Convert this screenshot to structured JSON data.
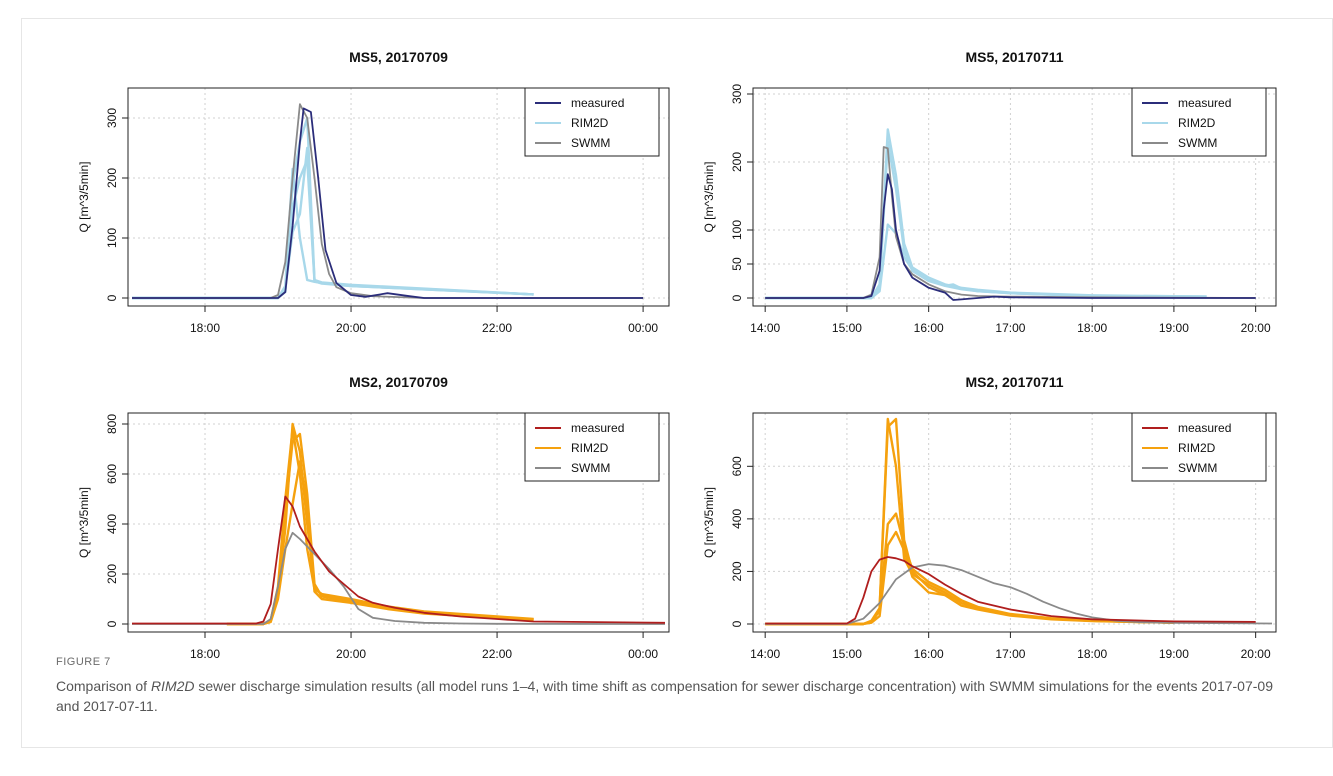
{
  "figure": {
    "label": "FIGURE 7",
    "caption_pre": "Comparison of ",
    "caption_em": "RIM2D",
    "caption_post": " sewer discharge simulation results (all model runs 1–4, with time shift as compensation for sewer discharge concentration) with SWMM simulations for the events 2017-07-09 and 2017-07-11."
  },
  "colors": {
    "ms5_measured": "#2b2d7a",
    "ms5_rim2d": "#a8d8ea",
    "ms2_measured": "#b01e1e",
    "ms2_rim2d": "#f5a10e",
    "swmm": "#8a8a8a"
  },
  "chart_data": [
    {
      "type": "line",
      "title": "MS5, 20170709",
      "ylabel": "Q [m^3/5min]",
      "xlabel": "",
      "xlim": [
        17.0,
        24.3
      ],
      "ylim": [
        0,
        340
      ],
      "xticks": [
        18,
        20,
        22,
        24
      ],
      "xtick_labels": [
        "18:00",
        "20:00",
        "22:00",
        "00:00"
      ],
      "yticks": [
        0,
        100,
        200,
        300
      ],
      "ytick_labels": [
        "0",
        "100",
        "200",
        "300"
      ],
      "grid": true,
      "legend": "top-right",
      "legend_entries": [
        "measured",
        "RIM2D",
        "SWMM"
      ],
      "series": [
        {
          "name": "RIM2D",
          "color_key": "ms5_rim2d",
          "width": 2.4,
          "x": [
            17.0,
            19.0,
            19.1,
            19.2,
            19.3,
            19.4,
            19.5,
            19.6,
            20.0,
            22.5
          ],
          "y": [
            0,
            0,
            20,
            215,
            100,
            30,
            27,
            25,
            20,
            6
          ]
        },
        {
          "name": "RIM2D",
          "color_key": "ms5_rim2d",
          "width": 2.4,
          "x": [
            17.0,
            19.0,
            19.1,
            19.2,
            19.3,
            19.4,
            19.5,
            19.6,
            20.0,
            22.5
          ],
          "y": [
            0,
            0,
            15,
            110,
            140,
            250,
            30,
            26,
            22,
            6
          ]
        },
        {
          "name": "RIM2D",
          "color_key": "ms5_rim2d",
          "width": 2.4,
          "x": [
            17.0,
            19.0,
            19.1,
            19.2,
            19.3,
            19.4,
            19.5,
            19.6,
            20.0,
            22.5
          ],
          "y": [
            0,
            0,
            10,
            150,
            200,
            230,
            28,
            24,
            20,
            6
          ]
        },
        {
          "name": "RIM2D",
          "color_key": "ms5_rim2d",
          "width": 2.4,
          "x": [
            17.0,
            19.0,
            19.1,
            19.2,
            19.3,
            19.4,
            19.5,
            19.6,
            20.0,
            22.5
          ],
          "y": [
            0,
            0,
            12,
            190,
            260,
            300,
            30,
            25,
            21,
            6
          ]
        },
        {
          "name": "SWMM",
          "color_key": "swmm",
          "width": 1.8,
          "x": [
            17.0,
            18.9,
            19.0,
            19.1,
            19.2,
            19.3,
            19.4,
            19.5,
            19.6,
            19.7,
            19.8,
            20.0,
            20.3,
            21.0,
            24.0
          ],
          "y": [
            0,
            0,
            5,
            60,
            200,
            323,
            300,
            200,
            90,
            40,
            18,
            8,
            3,
            0,
            0
          ]
        },
        {
          "name": "measured",
          "color_key": "ms5_measured",
          "width": 1.8,
          "x": [
            17.0,
            19.0,
            19.1,
            19.2,
            19.3,
            19.35,
            19.45,
            19.55,
            19.65,
            19.8,
            20.0,
            20.2,
            20.5,
            20.8,
            21.0,
            24.0
          ],
          "y": [
            0,
            0,
            10,
            120,
            260,
            316,
            310,
            200,
            80,
            25,
            5,
            2,
            8,
            3,
            0,
            0
          ]
        }
      ]
    },
    {
      "type": "line",
      "title": "MS5, 20170711",
      "ylabel": "Q [m^3/5min]",
      "xlabel": "",
      "xlim": [
        13.9,
        20.2
      ],
      "ylim": [
        0,
        300
      ],
      "xticks": [
        14,
        15,
        16,
        17,
        18,
        19,
        20
      ],
      "xtick_labels": [
        "14:00",
        "15:00",
        "16:00",
        "17:00",
        "18:00",
        "19:00",
        "20:00"
      ],
      "yticks": [
        0,
        50,
        100,
        200,
        300
      ],
      "ytick_labels": [
        "0",
        "50",
        "100",
        "200",
        "300"
      ],
      "grid": true,
      "legend": "top-right",
      "legend_entries": [
        "measured",
        "RIM2D",
        "SWMM"
      ],
      "series": [
        {
          "name": "RIM2D",
          "color_key": "ms5_rim2d",
          "width": 2.4,
          "x": [
            14.0,
            15.3,
            15.4,
            15.5,
            15.6,
            15.7,
            15.8,
            16.0,
            16.2,
            16.4,
            16.6,
            17.0,
            18.0,
            19.4
          ],
          "y": [
            0,
            0,
            20,
            248,
            180,
            80,
            45,
            30,
            20,
            15,
            12,
            8,
            4,
            2
          ]
        },
        {
          "name": "RIM2D",
          "color_key": "ms5_rim2d",
          "width": 2.4,
          "x": [
            14.0,
            15.3,
            15.4,
            15.5,
            15.6,
            15.7,
            15.8,
            16.0,
            16.2,
            16.3,
            16.4,
            16.6,
            17.0,
            18.0,
            19.4
          ],
          "y": [
            0,
            0,
            10,
            108,
            95,
            60,
            42,
            28,
            18,
            20,
            14,
            10,
            7,
            3,
            2
          ]
        },
        {
          "name": "RIM2D",
          "color_key": "ms5_rim2d",
          "width": 2.4,
          "x": [
            14.0,
            15.3,
            15.4,
            15.5,
            15.6,
            15.7,
            15.8,
            16.0,
            16.2,
            16.4,
            16.6,
            17.0,
            18.0,
            19.4
          ],
          "y": [
            0,
            0,
            15,
            230,
            160,
            70,
            40,
            25,
            18,
            13,
            10,
            7,
            3,
            2
          ]
        },
        {
          "name": "SWMM",
          "color_key": "swmm",
          "width": 1.8,
          "x": [
            14.0,
            15.2,
            15.3,
            15.4,
            15.45,
            15.5,
            15.55,
            15.6,
            15.7,
            15.8,
            16.0,
            16.2,
            16.4,
            16.6,
            17.0,
            18.0,
            20.0
          ],
          "y": [
            0,
            0,
            5,
            60,
            222,
            220,
            150,
            90,
            50,
            35,
            20,
            10,
            5,
            3,
            2,
            1,
            0
          ]
        },
        {
          "name": "measured",
          "color_key": "ms5_measured",
          "width": 1.8,
          "x": [
            14.0,
            15.2,
            15.3,
            15.4,
            15.45,
            15.5,
            15.55,
            15.6,
            15.7,
            15.8,
            16.0,
            16.2,
            16.3,
            16.4,
            16.6,
            16.8,
            17.0,
            18.0,
            20.0
          ],
          "y": [
            0,
            0,
            3,
            40,
            130,
            182,
            160,
            100,
            50,
            30,
            15,
            8,
            -3,
            -2,
            0,
            2,
            1,
            0,
            0
          ]
        }
      ]
    },
    {
      "type": "line",
      "title": "MS2, 20170709",
      "ylabel": "Q [m^3/5min]",
      "xlabel": "",
      "xlim": [
        17.0,
        24.3
      ],
      "ylim": [
        0,
        820
      ],
      "xticks": [
        18,
        20,
        22,
        24
      ],
      "xtick_labels": [
        "18:00",
        "20:00",
        "22:00",
        "00:00"
      ],
      "yticks": [
        0,
        200,
        400,
        600,
        800
      ],
      "ytick_labels": [
        "0",
        "200",
        "400",
        "600",
        "800"
      ],
      "grid": true,
      "legend": "top-right",
      "legend_entries": [
        "measured",
        "RIM2D",
        "SWMM"
      ],
      "series": [
        {
          "name": "RIM2D",
          "color_key": "ms2_rim2d",
          "width": 2.4,
          "x": [
            18.3,
            18.8,
            18.9,
            19.0,
            19.1,
            19.2,
            19.3,
            19.4,
            19.5,
            19.6,
            20.0,
            20.5,
            21.0,
            22.0,
            22.5
          ],
          "y": [
            0,
            0,
            15,
            150,
            500,
            780,
            600,
            300,
            140,
            120,
            100,
            70,
            50,
            30,
            20
          ]
        },
        {
          "name": "RIM2D",
          "color_key": "ms2_rim2d",
          "width": 2.4,
          "x": [
            18.3,
            18.8,
            18.9,
            19.0,
            19.1,
            19.2,
            19.3,
            19.4,
            19.5,
            19.6,
            20.0,
            20.5,
            21.0,
            22.0,
            22.5
          ],
          "y": [
            0,
            0,
            10,
            120,
            450,
            730,
            760,
            520,
            160,
            110,
            90,
            65,
            45,
            25,
            18
          ]
        },
        {
          "name": "RIM2D",
          "color_key": "ms2_rim2d",
          "width": 2.4,
          "x": [
            18.3,
            18.8,
            18.9,
            19.0,
            19.1,
            19.2,
            19.3,
            19.4,
            19.5,
            19.6,
            20.0,
            20.5,
            21.0,
            22.0,
            22.5
          ],
          "y": [
            0,
            0,
            12,
            130,
            380,
            800,
            690,
            400,
            150,
            115,
            95,
            68,
            48,
            28,
            19
          ]
        },
        {
          "name": "RIM2D",
          "color_key": "ms2_rim2d",
          "width": 2.4,
          "x": [
            18.3,
            18.8,
            18.9,
            19.0,
            19.1,
            19.2,
            19.3,
            19.4,
            19.5,
            19.6,
            20.0,
            20.5,
            21.0,
            22.0,
            22.5
          ],
          "y": [
            0,
            0,
            8,
            100,
            300,
            480,
            650,
            480,
            130,
            100,
            85,
            60,
            42,
            24,
            16
          ]
        },
        {
          "name": "SWMM",
          "color_key": "swmm",
          "width": 1.8,
          "x": [
            17.0,
            18.8,
            18.9,
            19.0,
            19.1,
            19.2,
            19.3,
            19.5,
            19.7,
            19.9,
            20.1,
            20.3,
            20.6,
            21.0,
            21.5,
            22.0,
            24.3
          ],
          "y": [
            0,
            0,
            20,
            150,
            300,
            365,
            340,
            280,
            220,
            150,
            60,
            25,
            12,
            5,
            2,
            1,
            0
          ]
        },
        {
          "name": "measured",
          "color_key": "ms2_measured",
          "width": 1.8,
          "x": [
            17.0,
            18.7,
            18.8,
            18.9,
            19.0,
            19.1,
            19.2,
            19.3,
            19.5,
            19.7,
            19.9,
            20.1,
            20.3,
            20.6,
            21.0,
            21.5,
            22.0,
            22.5,
            24.3
          ],
          "y": [
            2,
            2,
            10,
            80,
            300,
            510,
            470,
            390,
            290,
            210,
            160,
            110,
            85,
            65,
            45,
            30,
            20,
            10,
            5
          ]
        }
      ]
    },
    {
      "type": "line",
      "title": "MS2, 20170711",
      "ylabel": "Q [m^3/5min]",
      "xlabel": "",
      "xlim": [
        13.9,
        20.2
      ],
      "ylim": [
        0,
        780
      ],
      "xticks": [
        14,
        15,
        16,
        17,
        18,
        19,
        20
      ],
      "xtick_labels": [
        "14:00",
        "15:00",
        "16:00",
        "17:00",
        "18:00",
        "19:00",
        "20:00"
      ],
      "yticks": [
        0,
        200,
        400,
        600
      ],
      "ytick_labels": [
        "0",
        "200",
        "400",
        "600"
      ],
      "grid": true,
      "legend": "top-right",
      "legend_entries": [
        "measured",
        "RIM2D",
        "SWMM"
      ],
      "series": [
        {
          "name": "RIM2D",
          "color_key": "ms2_rim2d",
          "width": 2.4,
          "x": [
            14.0,
            15.2,
            15.3,
            15.4,
            15.5,
            15.6,
            15.7,
            15.8,
            16.0,
            16.2,
            16.4,
            16.6,
            17.0,
            17.5,
            18.0,
            19.0
          ],
          "y": [
            0,
            0,
            10,
            60,
            780,
            600,
            250,
            190,
            150,
            120,
            80,
            60,
            35,
            20,
            12,
            5
          ]
        },
        {
          "name": "RIM2D",
          "color_key": "ms2_rim2d",
          "width": 2.4,
          "x": [
            14.0,
            15.2,
            15.3,
            15.4,
            15.5,
            15.6,
            15.7,
            15.8,
            16.0,
            16.2,
            16.4,
            16.6,
            17.0,
            17.5,
            18.0,
            19.0
          ],
          "y": [
            0,
            0,
            8,
            50,
            380,
            420,
            300,
            210,
            160,
            130,
            90,
            65,
            38,
            22,
            13,
            5
          ]
        },
        {
          "name": "RIM2D",
          "color_key": "ms2_rim2d",
          "width": 2.4,
          "x": [
            14.0,
            15.2,
            15.3,
            15.4,
            15.5,
            15.6,
            15.7,
            15.8,
            16.0,
            16.2,
            16.4,
            16.6,
            17.0,
            17.5,
            18.0,
            19.0
          ],
          "y": [
            0,
            0,
            12,
            60,
            750,
            780,
            320,
            200,
            140,
            110,
            70,
            55,
            32,
            18,
            11,
            5
          ]
        },
        {
          "name": "RIM2D",
          "color_key": "ms2_rim2d",
          "width": 2.4,
          "x": [
            14.0,
            15.2,
            15.3,
            15.4,
            15.5,
            15.6,
            15.7,
            15.8,
            16.0,
            16.2,
            16.4,
            16.6,
            17.0,
            17.5,
            18.0,
            19.0
          ],
          "y": [
            0,
            0,
            5,
            30,
            300,
            350,
            280,
            180,
            120,
            110,
            90,
            60,
            34,
            20,
            12,
            5
          ]
        },
        {
          "name": "SWMM",
          "color_key": "swmm",
          "width": 1.8,
          "x": [
            14.0,
            15.0,
            15.2,
            15.4,
            15.6,
            15.8,
            16.0,
            16.2,
            16.4,
            16.6,
            16.8,
            17.0,
            17.2,
            17.4,
            17.6,
            17.8,
            18.0,
            18.3,
            18.6,
            19.0,
            20.2
          ],
          "y": [
            0,
            0,
            20,
            80,
            170,
            215,
            228,
            222,
            205,
            180,
            155,
            140,
            115,
            85,
            60,
            40,
            25,
            12,
            7,
            4,
            2
          ]
        },
        {
          "name": "measured",
          "color_key": "ms2_measured",
          "width": 1.8,
          "x": [
            14.0,
            15.0,
            15.1,
            15.2,
            15.3,
            15.4,
            15.5,
            15.6,
            15.7,
            15.8,
            16.0,
            16.2,
            16.4,
            16.6,
            17.0,
            17.5,
            18.0,
            19.0,
            20.0
          ],
          "y": [
            2,
            2,
            20,
            100,
            200,
            245,
            255,
            250,
            240,
            220,
            190,
            150,
            115,
            85,
            55,
            30,
            18,
            10,
            8
          ]
        }
      ]
    }
  ]
}
